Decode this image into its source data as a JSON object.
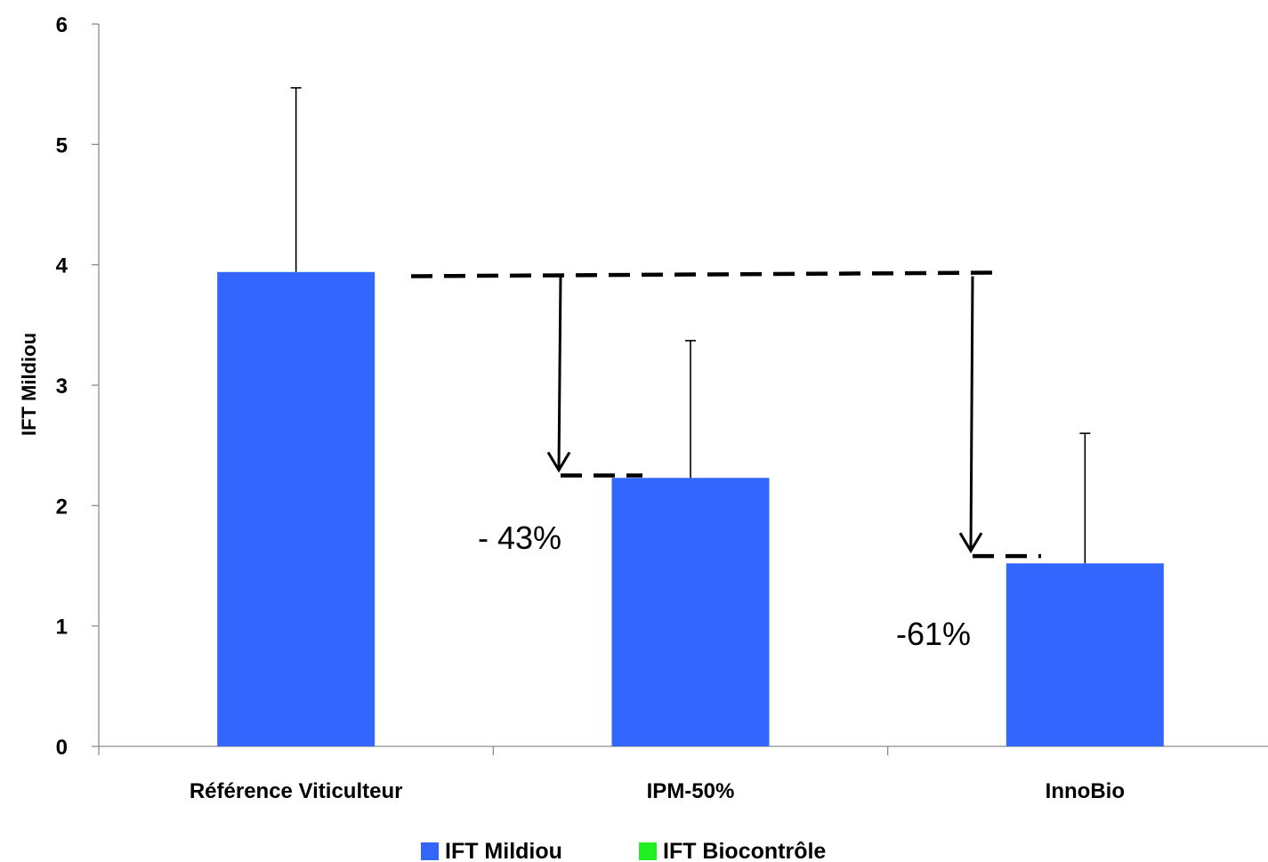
{
  "chart_data": {
    "type": "bar",
    "categories": [
      "Référence Viticulteur",
      "IPM-50%",
      "InnoBio"
    ],
    "series": [
      {
        "name": "IFT Mildiou",
        "values": [
          3.94,
          2.23,
          1.52
        ],
        "error_upper": [
          5.47,
          3.37,
          2.6
        ],
        "color": "#3366FF"
      },
      {
        "name": "IFT Biocontrôle",
        "values": [
          0,
          0,
          0
        ],
        "color": "#22EE22"
      }
    ],
    "ylabel": "IFT Mildiou",
    "xlabel": "",
    "ylim": [
      0,
      6
    ],
    "yticks": [
      "0",
      "1",
      "2",
      "3",
      "4",
      "5",
      "6"
    ],
    "grid": false,
    "legend_position": "bottom",
    "reference_level": 3.92,
    "annotations": [
      {
        "text": "- 43%",
        "target_category": "IPM-50%",
        "target_value": 2.25
      },
      {
        "text": "-61%",
        "target_category": "InnoBio",
        "target_value": 1.58
      }
    ]
  }
}
